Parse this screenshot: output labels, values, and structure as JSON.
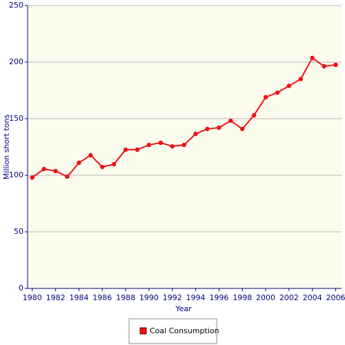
{
  "chart_data": {
    "type": "line",
    "x_label": "Year",
    "y_label": "Million short tons",
    "x": [
      1980,
      1981,
      1982,
      1983,
      1984,
      1985,
      1986,
      1987,
      1988,
      1989,
      1990,
      1991,
      1992,
      1993,
      1994,
      1995,
      1996,
      1997,
      1998,
      1999,
      2000,
      2001,
      2002,
      2003,
      2004,
      2005,
      2006
    ],
    "series": [
      {
        "name": "Coal Consumption",
        "color": "#ee1111",
        "values": [
          98,
          105.5,
          103.7,
          98.8,
          111,
          117.7,
          107.3,
          109.8,
          122.6,
          122.6,
          126.8,
          128.7,
          125.6,
          126.8,
          136.6,
          140.9,
          142.1,
          148.2,
          140.9,
          153,
          169,
          173,
          179,
          185,
          203.7,
          196.3,
          197.6
        ]
      }
    ],
    "xlim": [
      1979.6,
      2006.5
    ],
    "xticks": [
      1980,
      1982,
      1984,
      1986,
      1988,
      1990,
      1992,
      1994,
      1996,
      1998,
      2000,
      2002,
      2004,
      2006
    ],
    "ylim": [
      0,
      250
    ],
    "yticks": [
      0,
      50,
      100,
      150,
      200,
      250
    ],
    "grid": true,
    "legend": "bottom"
  }
}
